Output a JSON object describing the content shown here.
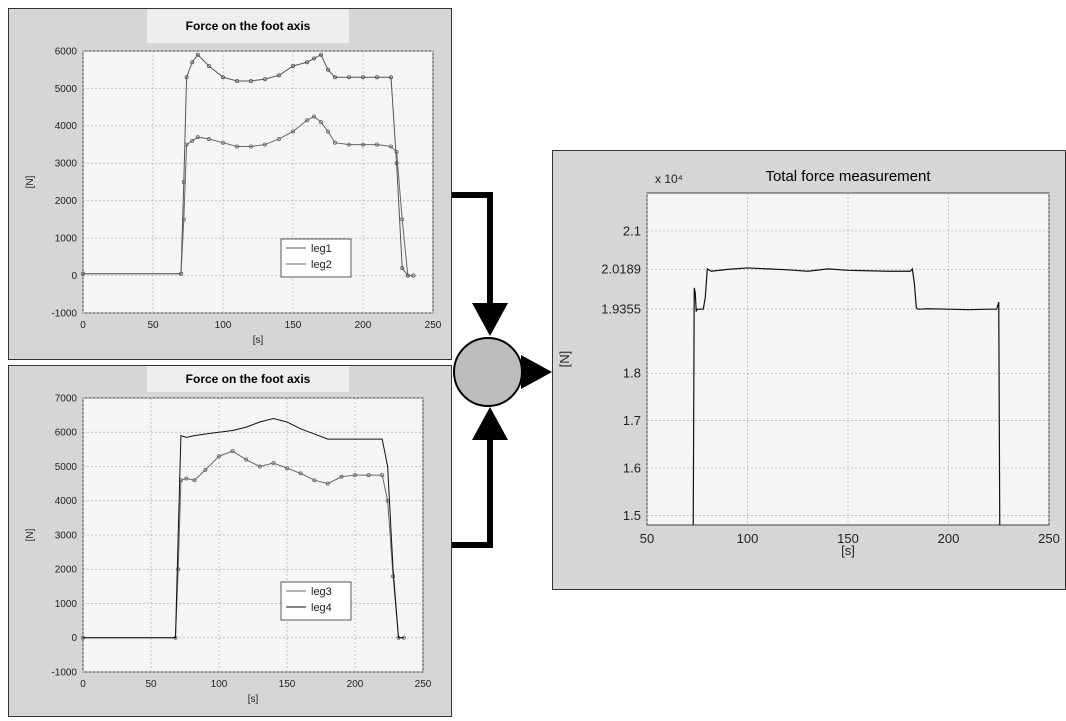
{
  "chart_data": [
    {
      "type": "line",
      "title": "Force on the foot axis",
      "xlabel": "[s]",
      "ylabel": "[N]",
      "xlim": [
        0,
        250
      ],
      "ylim": [
        -1000,
        6000
      ],
      "xticks": [
        0,
        50,
        100,
        150,
        200,
        250
      ],
      "xtick_labels": [
        "0",
        "50",
        "100",
        "150",
        "200",
        "250"
      ],
      "yticks": [
        -1000,
        0,
        1000,
        2000,
        3000,
        4000,
        5000,
        6000
      ],
      "ytick_labels": [
        "-1000",
        "0",
        "1000",
        "2000",
        "3000",
        "4000",
        "5000",
        "6000"
      ],
      "grid": true,
      "legend": "bottom-right",
      "series": [
        {
          "name": "leg1",
          "x": [
            0,
            70,
            72,
            74,
            78,
            82,
            90,
            100,
            110,
            120,
            130,
            140,
            150,
            160,
            165,
            170,
            175,
            180,
            190,
            200,
            210,
            220,
            224,
            228,
            232,
            236
          ],
          "y": [
            50,
            50,
            2500,
            5300,
            5700,
            5900,
            5600,
            5300,
            5200,
            5200,
            5250,
            5350,
            5600,
            5700,
            5800,
            5900,
            5500,
            5300,
            5300,
            5300,
            5300,
            5300,
            3000,
            200,
            0,
            0
          ]
        },
        {
          "name": "leg2",
          "x": [
            0,
            70,
            72,
            74,
            78,
            82,
            90,
            100,
            110,
            120,
            130,
            140,
            150,
            160,
            165,
            170,
            175,
            180,
            190,
            200,
            210,
            220,
            224,
            228,
            232,
            236
          ],
          "y": [
            50,
            50,
            1500,
            3500,
            3600,
            3700,
            3650,
            3550,
            3450,
            3450,
            3500,
            3650,
            3850,
            4150,
            4250,
            4100,
            3850,
            3550,
            3500,
            3500,
            3500,
            3450,
            3300,
            1500,
            0,
            0
          ]
        }
      ]
    },
    {
      "type": "line",
      "title": "Force on the foot axis",
      "xlabel": "[s]",
      "ylabel": "[N]",
      "xlim": [
        0,
        250
      ],
      "ylim": [
        -1000,
        7000
      ],
      "xticks": [
        0,
        50,
        100,
        150,
        200,
        250
      ],
      "xtick_labels": [
        "0",
        "50",
        "100",
        "150",
        "200",
        "250"
      ],
      "yticks": [
        -1000,
        0,
        1000,
        2000,
        3000,
        4000,
        5000,
        6000,
        7000
      ],
      "ytick_labels": [
        "-1000",
        "0",
        "1000",
        "2000",
        "3000",
        "4000",
        "5000",
        "6000",
        "7000"
      ],
      "grid": true,
      "legend": "bottom-right",
      "series": [
        {
          "name": "leg3",
          "x": [
            0,
            68,
            70,
            72,
            76,
            82,
            90,
            100,
            110,
            120,
            130,
            140,
            150,
            160,
            170,
            180,
            190,
            200,
            210,
            220,
            224,
            228,
            232,
            236
          ],
          "y": [
            0,
            0,
            2000,
            4600,
            4650,
            4600,
            4900,
            5300,
            5450,
            5200,
            5000,
            5100,
            4950,
            4800,
            4600,
            4500,
            4700,
            4750,
            4750,
            4750,
            4000,
            1800,
            0,
            0
          ]
        },
        {
          "name": "leg4",
          "x": [
            0,
            68,
            70,
            72,
            76,
            82,
            90,
            100,
            110,
            120,
            130,
            140,
            150,
            160,
            170,
            180,
            190,
            200,
            210,
            220,
            224,
            228,
            232,
            236
          ],
          "y": [
            0,
            0,
            3000,
            5900,
            5850,
            5900,
            5950,
            6000,
            6050,
            6150,
            6300,
            6400,
            6300,
            6100,
            5950,
            5800,
            5800,
            5800,
            5800,
            5800,
            5000,
            2000,
            0,
            0
          ]
        }
      ]
    },
    {
      "type": "line",
      "title": "Total force measurement",
      "xlabel": "[s]",
      "ylabel": "[N]",
      "y_multiplier": "x 10⁴",
      "xlim": [
        50,
        250
      ],
      "ylim": [
        1.48,
        2.18
      ],
      "xticks": [
        50,
        100,
        150,
        200,
        250
      ],
      "xtick_labels": [
        "50",
        "100",
        "150",
        "200",
        "250"
      ],
      "yticks": [
        1.5,
        1.6,
        1.7,
        1.8,
        1.9355,
        2.0189,
        2.1
      ],
      "ytick_labels": [
        "1.5",
        "1.6",
        "1.7",
        "1.8",
        "1.9355",
        "2.0189",
        "2.1"
      ],
      "grid": true,
      "series": [
        {
          "x": [
            73,
            73.5,
            74,
            74.5,
            75,
            76,
            78,
            79,
            80,
            82,
            90,
            100,
            110,
            120,
            130,
            140,
            150,
            160,
            170,
            180,
            181,
            182,
            183,
            184,
            185,
            190,
            200,
            210,
            220,
            224,
            225,
            225.5
          ],
          "y": [
            1.48,
            1.98,
            1.97,
            1.93,
            1.935,
            1.935,
            1.935,
            1.96,
            2.02,
            2.015,
            2.019,
            2.022,
            2.02,
            2.018,
            2.015,
            2.02,
            2.017,
            2.016,
            2.015,
            2.015,
            2.015,
            2.02,
            1.99,
            1.938,
            1.935,
            1.936,
            1.935,
            1.934,
            1.935,
            1.935,
            1.95,
            1.48
          ]
        }
      ]
    }
  ]
}
